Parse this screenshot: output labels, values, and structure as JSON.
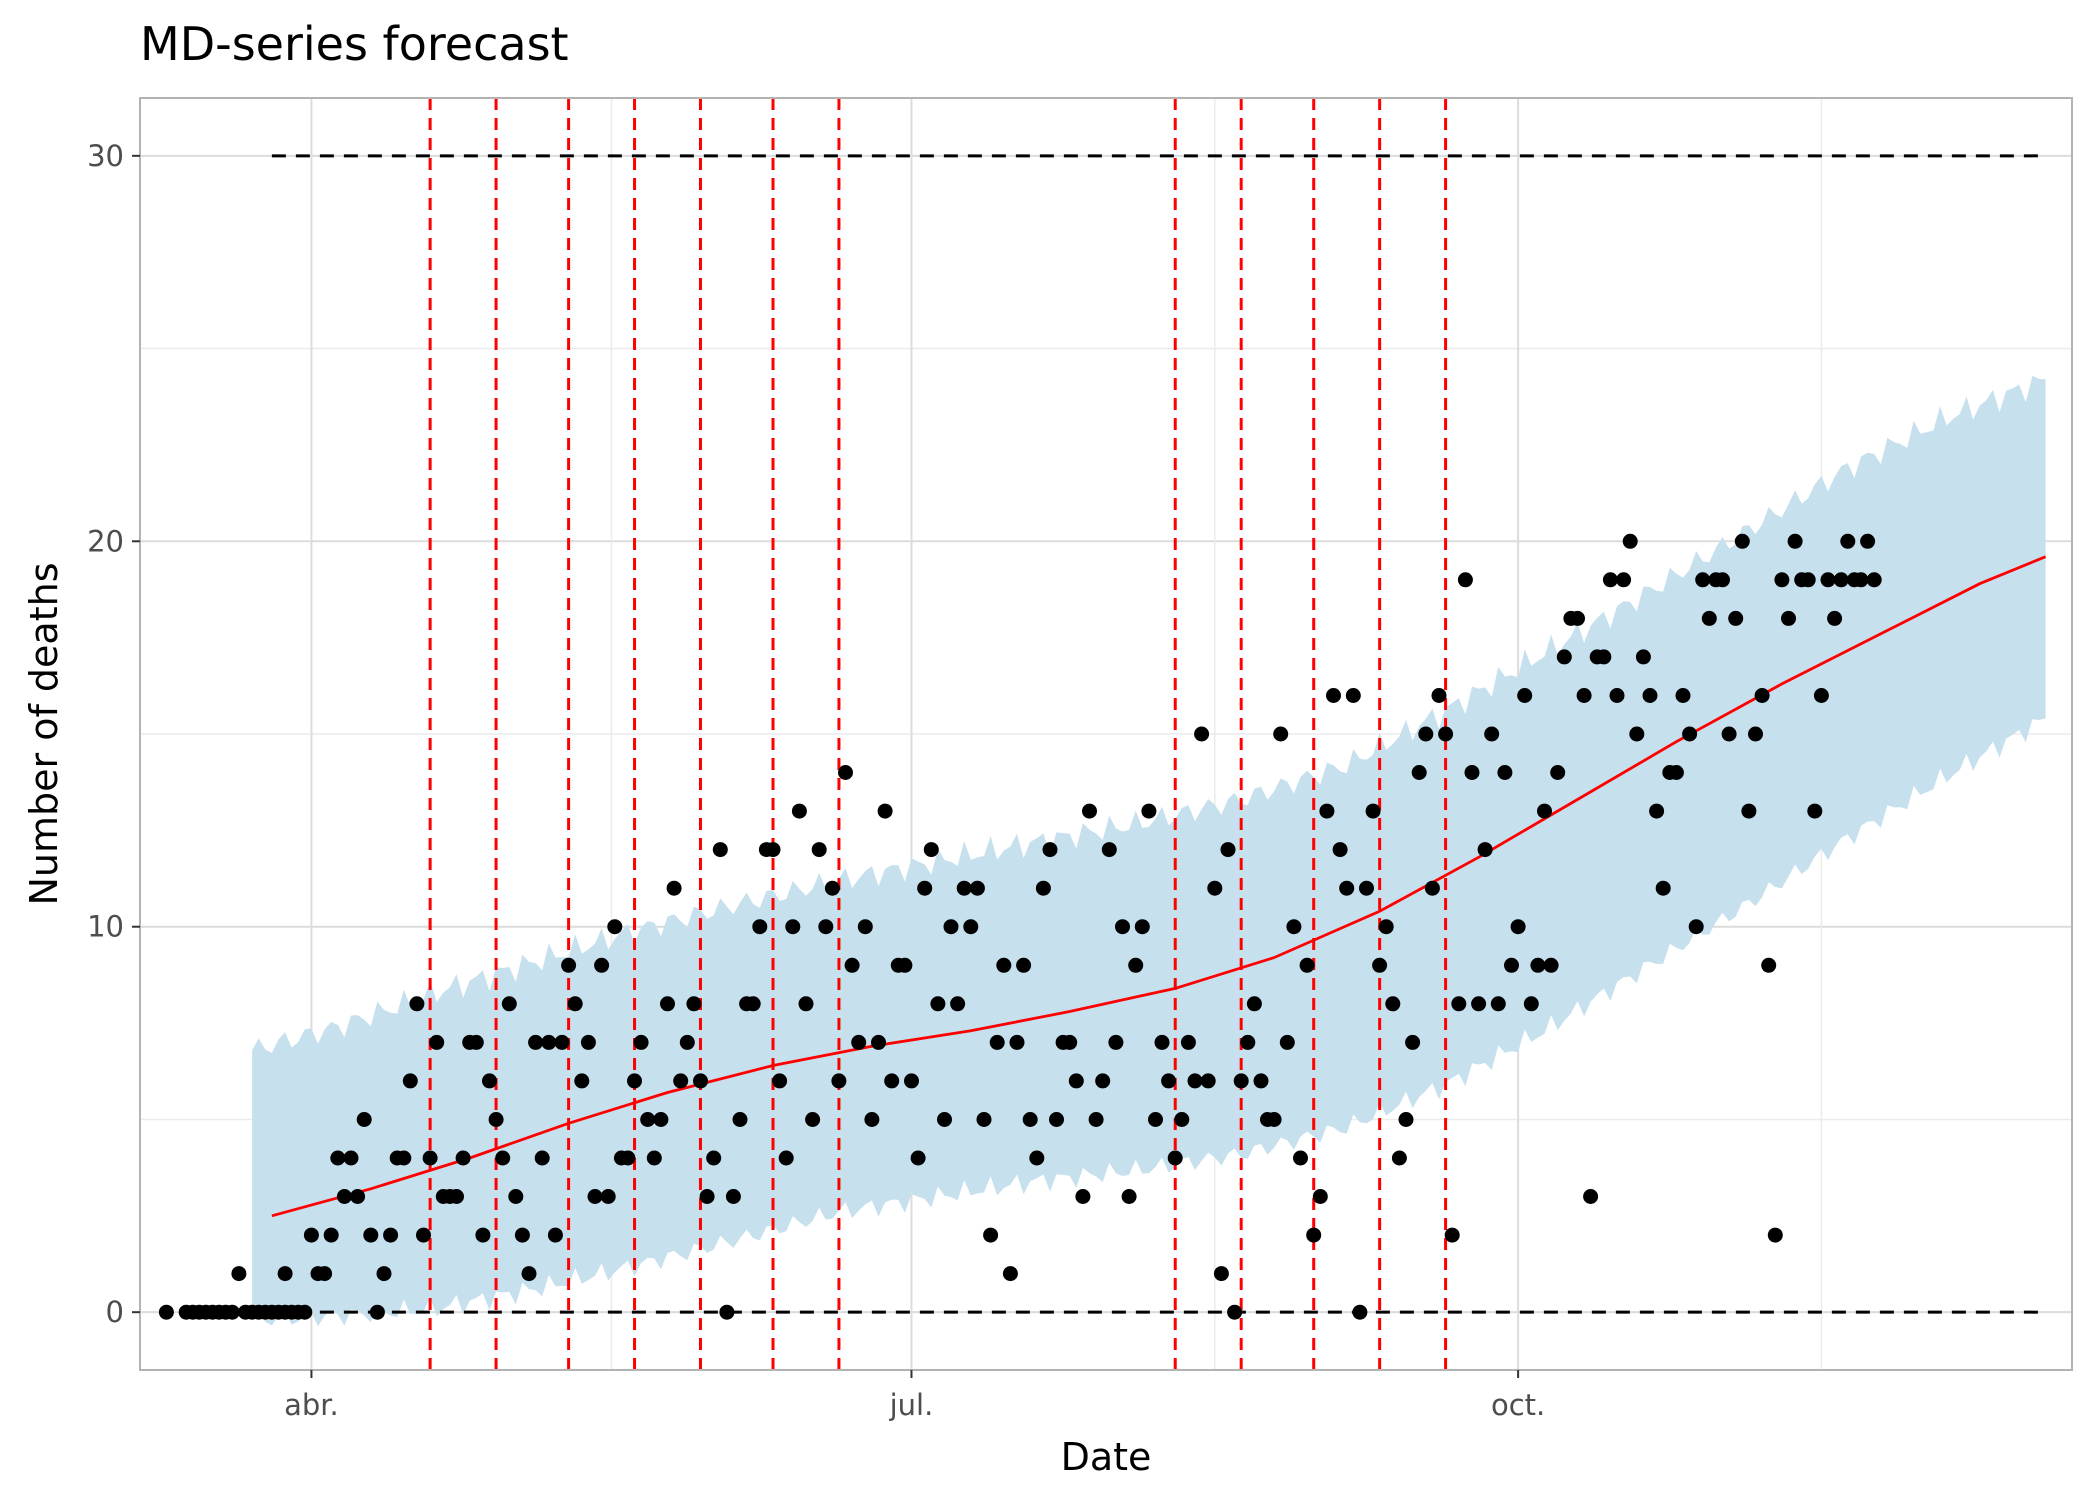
{
  "chart_data": {
    "type": "scatter",
    "title": "MD-series forecast",
    "xlabel": "Date",
    "ylabel": "Number of deaths",
    "x_is_date": true,
    "xlim": [
      "2020-03-06",
      "2020-12-24"
    ],
    "ylim": [
      -1.5,
      31.5
    ],
    "x_ticks": [
      {
        "date": "2020-04-01",
        "label": "abr."
      },
      {
        "date": "2020-07-01",
        "label": "jul."
      },
      {
        "date": "2020-10-01",
        "label": "oct."
      }
    ],
    "y_ticks": [
      0,
      10,
      20,
      30
    ],
    "grid": true,
    "legend": "none",
    "colors": {
      "points": "#000000",
      "trend": "#ff0000",
      "band": "#c6e0ee",
      "bounds": "#000000",
      "events": "#ff0000",
      "grid": "#dcdcdc",
      "frame": "#b3b3b3"
    },
    "horizontal_lines": [
      {
        "y": 30,
        "from": "2020-03-26",
        "to": "2020-12-20",
        "style": "dashed"
      },
      {
        "y": 0,
        "from": "2020-03-26",
        "to": "2020-12-20",
        "style": "dashed"
      }
    ],
    "event_lines": [
      "2020-04-19",
      "2020-04-29",
      "2020-05-10",
      "2020-05-20",
      "2020-05-30",
      "2020-06-10",
      "2020-06-20",
      "2020-08-10",
      "2020-08-20",
      "2020-08-31",
      "2020-09-10",
      "2020-09-20"
    ],
    "band": {
      "x": [
        "2020-03-23",
        "2020-04-05",
        "2020-04-20",
        "2020-05-05",
        "2020-05-20",
        "2020-06-05",
        "2020-06-20",
        "2020-07-05",
        "2020-07-20",
        "2020-08-05",
        "2020-08-20",
        "2020-09-05",
        "2020-09-20",
        "2020-10-05",
        "2020-10-20",
        "2020-11-05",
        "2020-11-20",
        "2020-12-05",
        "2020-12-20"
      ],
      "lower": [
        -0.2,
        -0.1,
        0.1,
        0.6,
        1.2,
        1.9,
        2.6,
        3.0,
        3.4,
        3.7,
        4.1,
        4.8,
        5.9,
        7.3,
        8.9,
        10.6,
        12.3,
        13.9,
        15.4
      ],
      "upper": [
        6.8,
        7.4,
        8.3,
        9.1,
        9.9,
        10.6,
        11.2,
        11.7,
        12.2,
        12.7,
        13.3,
        14.2,
        15.6,
        17.1,
        18.6,
        20.3,
        21.9,
        23.2,
        24.2
      ]
    },
    "trend": {
      "x": [
        "2020-03-26",
        "2020-04-10",
        "2020-04-25",
        "2020-05-10",
        "2020-05-25",
        "2020-06-10",
        "2020-06-25",
        "2020-07-10",
        "2020-07-25",
        "2020-08-10",
        "2020-08-25",
        "2020-09-10",
        "2020-09-25",
        "2020-10-10",
        "2020-10-25",
        "2020-11-10",
        "2020-11-25",
        "2020-12-10",
        "2020-12-20"
      ],
      "y": [
        2.5,
        3.2,
        4.0,
        4.9,
        5.7,
        6.4,
        6.9,
        7.3,
        7.8,
        8.4,
        9.2,
        10.4,
        11.8,
        13.3,
        14.8,
        16.3,
        17.6,
        18.9,
        19.6
      ]
    },
    "points": [
      [
        "2020-03-10",
        0
      ],
      [
        "2020-03-13",
        0
      ],
      [
        "2020-03-14",
        0
      ],
      [
        "2020-03-15",
        0
      ],
      [
        "2020-03-16",
        0
      ],
      [
        "2020-03-17",
        0
      ],
      [
        "2020-03-18",
        0
      ],
      [
        "2020-03-19",
        0
      ],
      [
        "2020-03-20",
        0
      ],
      [
        "2020-03-21",
        1
      ],
      [
        "2020-03-22",
        0
      ],
      [
        "2020-03-23",
        0
      ],
      [
        "2020-03-24",
        0
      ],
      [
        "2020-03-25",
        0
      ],
      [
        "2020-03-26",
        0
      ],
      [
        "2020-03-27",
        0
      ],
      [
        "2020-03-28",
        0
      ],
      [
        "2020-03-29",
        0
      ],
      [
        "2020-03-30",
        0
      ],
      [
        "2020-03-31",
        0
      ],
      [
        "2020-03-28",
        1
      ],
      [
        "2020-04-01",
        2
      ],
      [
        "2020-04-02",
        1
      ],
      [
        "2020-04-03",
        1
      ],
      [
        "2020-04-04",
        2
      ],
      [
        "2020-04-05",
        4
      ],
      [
        "2020-04-06",
        3
      ],
      [
        "2020-04-07",
        4
      ],
      [
        "2020-04-08",
        3
      ],
      [
        "2020-04-09",
        5
      ],
      [
        "2020-04-10",
        2
      ],
      [
        "2020-04-11",
        0
      ],
      [
        "2020-04-12",
        1
      ],
      [
        "2020-04-13",
        2
      ],
      [
        "2020-04-14",
        4
      ],
      [
        "2020-04-15",
        4
      ],
      [
        "2020-04-16",
        6
      ],
      [
        "2020-04-17",
        8
      ],
      [
        "2020-04-18",
        2
      ],
      [
        "2020-04-19",
        4
      ],
      [
        "2020-04-20",
        7
      ],
      [
        "2020-04-21",
        3
      ],
      [
        "2020-04-22",
        3
      ],
      [
        "2020-04-23",
        3
      ],
      [
        "2020-04-24",
        4
      ],
      [
        "2020-04-25",
        7
      ],
      [
        "2020-04-26",
        7
      ],
      [
        "2020-04-27",
        2
      ],
      [
        "2020-04-28",
        6
      ],
      [
        "2020-04-29",
        5
      ],
      [
        "2020-04-30",
        4
      ],
      [
        "2020-05-01",
        8
      ],
      [
        "2020-05-02",
        3
      ],
      [
        "2020-05-03",
        2
      ],
      [
        "2020-05-04",
        1
      ],
      [
        "2020-05-05",
        7
      ],
      [
        "2020-05-06",
        4
      ],
      [
        "2020-05-07",
        7
      ],
      [
        "2020-05-08",
        2
      ],
      [
        "2020-05-09",
        7
      ],
      [
        "2020-05-10",
        9
      ],
      [
        "2020-05-11",
        8
      ],
      [
        "2020-05-12",
        6
      ],
      [
        "2020-05-13",
        7
      ],
      [
        "2020-05-14",
        3
      ],
      [
        "2020-05-15",
        9
      ],
      [
        "2020-05-16",
        3
      ],
      [
        "2020-05-17",
        10
      ],
      [
        "2020-05-18",
        4
      ],
      [
        "2020-05-19",
        4
      ],
      [
        "2020-05-20",
        6
      ],
      [
        "2020-05-21",
        7
      ],
      [
        "2020-05-22",
        5
      ],
      [
        "2020-05-23",
        4
      ],
      [
        "2020-05-24",
        5
      ],
      [
        "2020-05-25",
        8
      ],
      [
        "2020-05-26",
        11
      ],
      [
        "2020-05-27",
        6
      ],
      [
        "2020-05-28",
        7
      ],
      [
        "2020-05-29",
        8
      ],
      [
        "2020-05-30",
        6
      ],
      [
        "2020-05-31",
        3
      ],
      [
        "2020-06-01",
        4
      ],
      [
        "2020-06-02",
        12
      ],
      [
        "2020-06-03",
        0
      ],
      [
        "2020-06-04",
        3
      ],
      [
        "2020-06-05",
        5
      ],
      [
        "2020-06-06",
        8
      ],
      [
        "2020-06-07",
        8
      ],
      [
        "2020-06-08",
        10
      ],
      [
        "2020-06-09",
        12
      ],
      [
        "2020-06-10",
        12
      ],
      [
        "2020-06-11",
        6
      ],
      [
        "2020-06-12",
        4
      ],
      [
        "2020-06-13",
        10
      ],
      [
        "2020-06-14",
        13
      ],
      [
        "2020-06-15",
        8
      ],
      [
        "2020-06-16",
        5
      ],
      [
        "2020-06-17",
        12
      ],
      [
        "2020-06-18",
        10
      ],
      [
        "2020-06-19",
        11
      ],
      [
        "2020-06-20",
        6
      ],
      [
        "2020-06-21",
        14
      ],
      [
        "2020-06-22",
        9
      ],
      [
        "2020-06-23",
        7
      ],
      [
        "2020-06-24",
        10
      ],
      [
        "2020-06-25",
        5
      ],
      [
        "2020-06-26",
        7
      ],
      [
        "2020-06-27",
        13
      ],
      [
        "2020-06-28",
        6
      ],
      [
        "2020-06-29",
        9
      ],
      [
        "2020-06-30",
        9
      ],
      [
        "2020-07-01",
        6
      ],
      [
        "2020-07-02",
        4
      ],
      [
        "2020-07-03",
        11
      ],
      [
        "2020-07-04",
        12
      ],
      [
        "2020-07-05",
        8
      ],
      [
        "2020-07-06",
        5
      ],
      [
        "2020-07-07",
        10
      ],
      [
        "2020-07-08",
        8
      ],
      [
        "2020-07-09",
        11
      ],
      [
        "2020-07-10",
        10
      ],
      [
        "2020-07-11",
        11
      ],
      [
        "2020-07-12",
        5
      ],
      [
        "2020-07-13",
        2
      ],
      [
        "2020-07-14",
        7
      ],
      [
        "2020-07-15",
        9
      ],
      [
        "2020-07-16",
        1
      ],
      [
        "2020-07-17",
        7
      ],
      [
        "2020-07-18",
        9
      ],
      [
        "2020-07-19",
        5
      ],
      [
        "2020-07-20",
        4
      ],
      [
        "2020-07-21",
        11
      ],
      [
        "2020-07-22",
        12
      ],
      [
        "2020-07-23",
        5
      ],
      [
        "2020-07-24",
        7
      ],
      [
        "2020-07-25",
        7
      ],
      [
        "2020-07-26",
        6
      ],
      [
        "2020-07-27",
        3
      ],
      [
        "2020-07-28",
        13
      ],
      [
        "2020-07-29",
        5
      ],
      [
        "2020-07-30",
        6
      ],
      [
        "2020-07-31",
        12
      ],
      [
        "2020-08-01",
        7
      ],
      [
        "2020-08-02",
        10
      ],
      [
        "2020-08-03",
        3
      ],
      [
        "2020-08-04",
        9
      ],
      [
        "2020-08-05",
        10
      ],
      [
        "2020-08-06",
        13
      ],
      [
        "2020-08-07",
        5
      ],
      [
        "2020-08-08",
        7
      ],
      [
        "2020-08-09",
        6
      ],
      [
        "2020-08-10",
        4
      ],
      [
        "2020-08-11",
        5
      ],
      [
        "2020-08-12",
        7
      ],
      [
        "2020-08-13",
        6
      ],
      [
        "2020-08-14",
        15
      ],
      [
        "2020-08-15",
        6
      ],
      [
        "2020-08-16",
        11
      ],
      [
        "2020-08-17",
        1
      ],
      [
        "2020-08-18",
        12
      ],
      [
        "2020-08-19",
        0
      ],
      [
        "2020-08-20",
        6
      ],
      [
        "2020-08-21",
        7
      ],
      [
        "2020-08-22",
        8
      ],
      [
        "2020-08-23",
        6
      ],
      [
        "2020-08-24",
        5
      ],
      [
        "2020-08-25",
        5
      ],
      [
        "2020-08-26",
        15
      ],
      [
        "2020-08-27",
        7
      ],
      [
        "2020-08-28",
        10
      ],
      [
        "2020-08-29",
        4
      ],
      [
        "2020-08-30",
        9
      ],
      [
        "2020-08-31",
        2
      ],
      [
        "2020-09-01",
        3
      ],
      [
        "2020-09-02",
        13
      ],
      [
        "2020-09-03",
        16
      ],
      [
        "2020-09-04",
        12
      ],
      [
        "2020-09-05",
        11
      ],
      [
        "2020-09-06",
        16
      ],
      [
        "2020-09-07",
        0
      ],
      [
        "2020-09-08",
        11
      ],
      [
        "2020-09-09",
        13
      ],
      [
        "2020-09-10",
        9
      ],
      [
        "2020-09-11",
        10
      ],
      [
        "2020-09-12",
        8
      ],
      [
        "2020-09-13",
        4
      ],
      [
        "2020-09-14",
        5
      ],
      [
        "2020-09-15",
        7
      ],
      [
        "2020-09-16",
        14
      ],
      [
        "2020-09-17",
        15
      ],
      [
        "2020-09-18",
        11
      ],
      [
        "2020-09-19",
        16
      ],
      [
        "2020-09-20",
        15
      ],
      [
        "2020-09-21",
        2
      ],
      [
        "2020-09-22",
        8
      ],
      [
        "2020-09-23",
        19
      ],
      [
        "2020-09-24",
        14
      ],
      [
        "2020-09-25",
        8
      ],
      [
        "2020-09-26",
        12
      ],
      [
        "2020-09-27",
        15
      ],
      [
        "2020-09-28",
        8
      ],
      [
        "2020-09-29",
        14
      ],
      [
        "2020-09-30",
        9
      ],
      [
        "2020-10-01",
        10
      ],
      [
        "2020-10-02",
        16
      ],
      [
        "2020-10-03",
        8
      ],
      [
        "2020-10-04",
        9
      ],
      [
        "2020-10-05",
        13
      ],
      [
        "2020-10-06",
        9
      ],
      [
        "2020-10-07",
        14
      ],
      [
        "2020-10-08",
        17
      ],
      [
        "2020-10-09",
        18
      ],
      [
        "2020-10-10",
        18
      ],
      [
        "2020-10-11",
        16
      ],
      [
        "2020-10-12",
        3
      ],
      [
        "2020-10-13",
        17
      ],
      [
        "2020-10-14",
        17
      ],
      [
        "2020-10-15",
        19
      ],
      [
        "2020-10-16",
        16
      ],
      [
        "2020-10-17",
        19
      ],
      [
        "2020-10-18",
        20
      ],
      [
        "2020-10-19",
        15
      ],
      [
        "2020-10-20",
        17
      ],
      [
        "2020-10-21",
        16
      ],
      [
        "2020-10-22",
        13
      ],
      [
        "2020-10-23",
        11
      ],
      [
        "2020-10-24",
        14
      ],
      [
        "2020-10-25",
        14
      ],
      [
        "2020-10-26",
        16
      ],
      [
        "2020-10-27",
        15
      ],
      [
        "2020-10-28",
        10
      ],
      [
        "2020-10-29",
        19
      ],
      [
        "2020-10-30",
        18
      ],
      [
        "2020-10-31",
        19
      ],
      [
        "2020-11-01",
        19
      ],
      [
        "2020-11-02",
        15
      ],
      [
        "2020-11-03",
        18
      ],
      [
        "2020-11-04",
        20
      ],
      [
        "2020-11-05",
        13
      ],
      [
        "2020-11-06",
        15
      ],
      [
        "2020-11-07",
        16
      ],
      [
        "2020-11-08",
        9
      ],
      [
        "2020-11-09",
        2
      ],
      [
        "2020-11-10",
        19
      ],
      [
        "2020-11-11",
        18
      ],
      [
        "2020-11-12",
        20
      ],
      [
        "2020-11-13",
        19
      ],
      [
        "2020-11-14",
        19
      ],
      [
        "2020-11-15",
        13
      ],
      [
        "2020-11-16",
        16
      ],
      [
        "2020-11-17",
        19
      ],
      [
        "2020-11-18",
        18
      ],
      [
        "2020-11-19",
        19
      ],
      [
        "2020-11-20",
        20
      ],
      [
        "2020-11-21",
        19
      ],
      [
        "2020-11-22",
        19
      ],
      [
        "2020-11-23",
        20
      ],
      [
        "2020-11-24",
        19
      ]
    ]
  }
}
